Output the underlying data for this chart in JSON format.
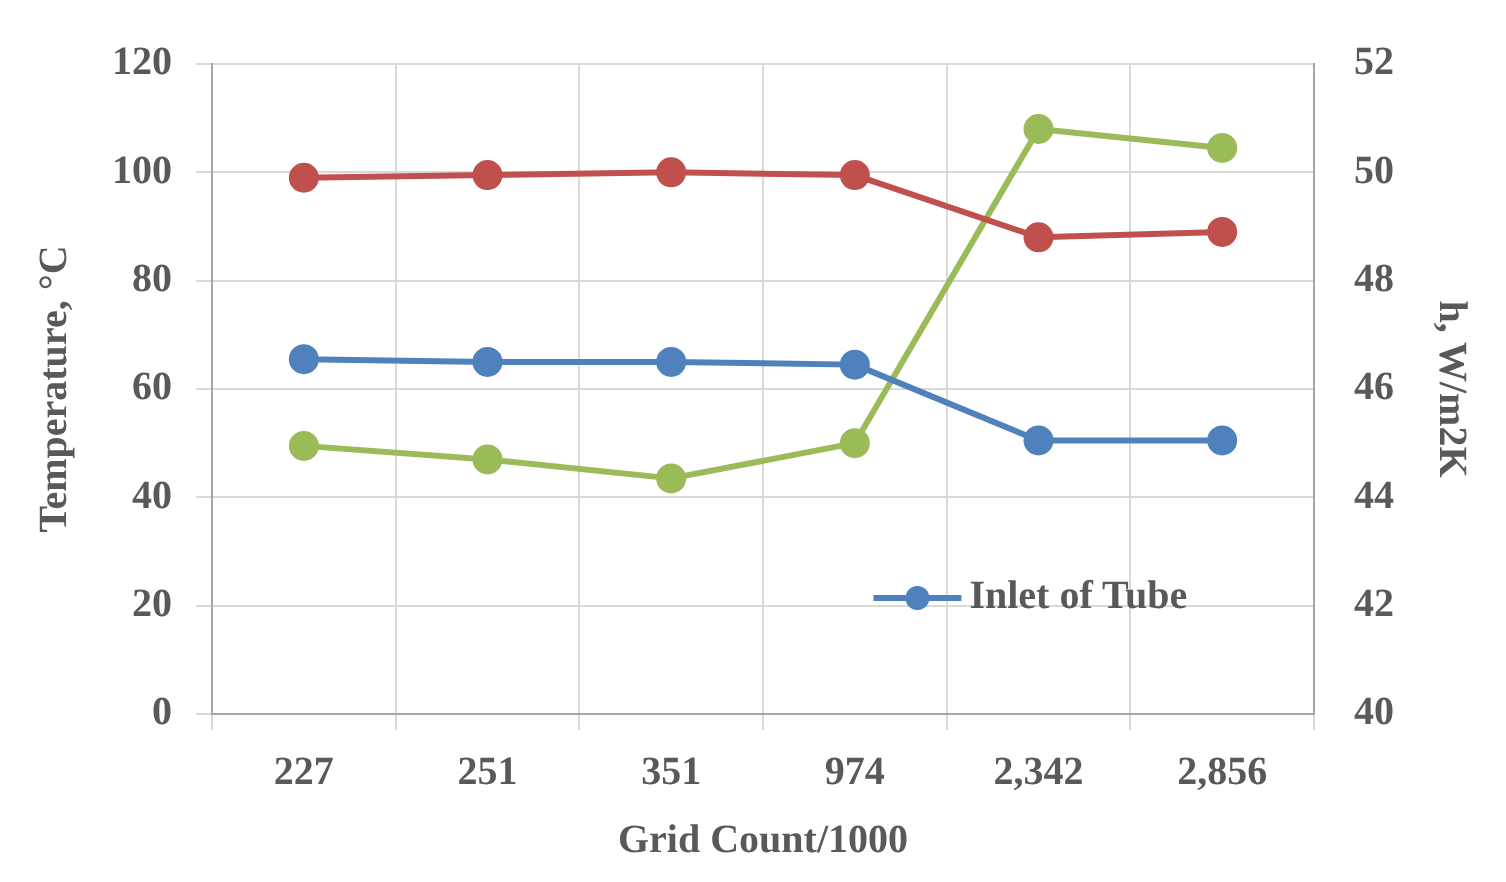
{
  "chart_data": {
    "type": "line",
    "xlabel": "Grid Count/1000",
    "ylabel": "Temperature, °C",
    "y2label": "h, W/m2K",
    "categories": [
      "227",
      "251",
      "351",
      "974",
      "2,342",
      "2,856"
    ],
    "series": [
      {
        "name": "Inlet of Tube",
        "color": "#4f81bd",
        "values": [
          65.5,
          65,
          65,
          64.5,
          50.5,
          50.5
        ]
      },
      {
        "color": "#c0504d",
        "values": [
          99,
          99.5,
          100,
          99.5,
          88,
          89
        ]
      },
      {
        "color": "#9bbb59",
        "axis": "y2",
        "values": [
          44.95,
          44.7,
          44.35,
          45.0,
          50.8,
          50.45
        ]
      }
    ],
    "ylim": [
      0,
      120
    ],
    "yticks": [
      0,
      20,
      40,
      60,
      80,
      100,
      120
    ],
    "y2lim": [
      40,
      52
    ],
    "y2ticks": [
      40,
      42,
      44,
      46,
      48,
      50,
      52
    ],
    "grid": true,
    "legend": "bottom right",
    "marker": "circle",
    "line_style": "solid"
  }
}
